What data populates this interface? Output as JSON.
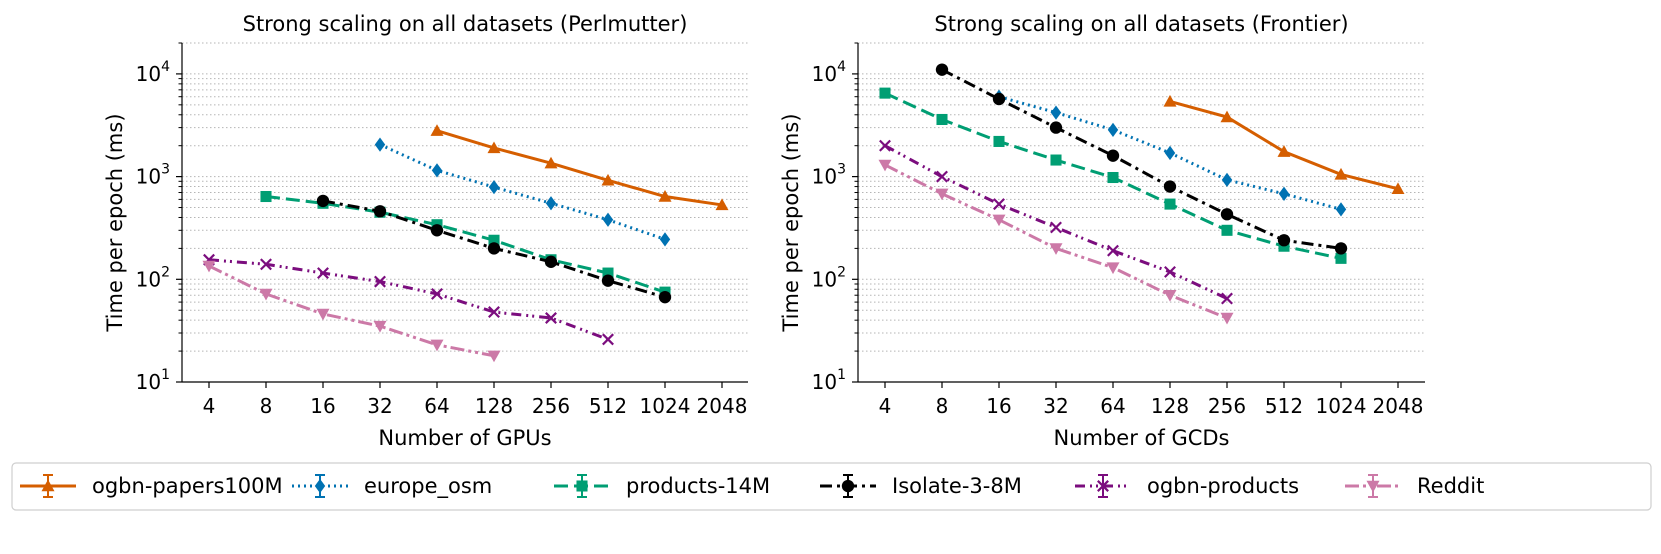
{
  "chart_data": [
    {
      "type": "line",
      "title": "Strong scaling on all datasets (Perlmutter)",
      "xlabel": "Number of GPUs",
      "ylabel": "Time per epoch (ms)",
      "yscale": "log",
      "ylim": [
        10,
        20000
      ],
      "x_ticks": [
        "4",
        "8",
        "16",
        "32",
        "64",
        "128",
        "256",
        "512",
        "1024",
        "2048"
      ],
      "y_ticks": [
        {
          "base": "10",
          "exp": "1"
        },
        {
          "base": "10",
          "exp": "2"
        },
        {
          "base": "10",
          "exp": "3"
        },
        {
          "base": "10",
          "exp": "4"
        }
      ],
      "grid": "horizontal minor, dotted",
      "series": [
        {
          "name": "ogbn-papers100M",
          "x": [
            64,
            128,
            256,
            512,
            1024,
            2048
          ],
          "values": [
            2800,
            1900,
            1350,
            920,
            640,
            530
          ]
        },
        {
          "name": "europe_osm",
          "x": [
            32,
            64,
            128,
            256,
            512,
            1024
          ],
          "values": [
            2050,
            1150,
            790,
            550,
            380,
            245
          ]
        },
        {
          "name": "products-14M",
          "x": [
            8,
            16,
            32,
            64,
            128,
            256,
            512,
            1024
          ],
          "values": [
            640,
            550,
            450,
            340,
            240,
            155,
            115,
            75
          ]
        },
        {
          "name": "Isolate-3-8M",
          "x": [
            16,
            32,
            64,
            128,
            256,
            512,
            1024
          ],
          "values": [
            580,
            460,
            300,
            200,
            148,
            97,
            67
          ]
        },
        {
          "name": "ogbn-products",
          "x": [
            4,
            8,
            16,
            32,
            64,
            128,
            256,
            512
          ],
          "values": [
            155,
            140,
            115,
            95,
            72,
            48,
            42,
            26
          ]
        },
        {
          "name": "Reddit",
          "x": [
            4,
            8,
            16,
            32,
            64,
            128
          ],
          "values": [
            135,
            72,
            46,
            35,
            23,
            18
          ]
        }
      ]
    },
    {
      "type": "line",
      "title": "Strong scaling on all datasets (Frontier)",
      "xlabel": "Number of GCDs",
      "ylabel": "Time per epoch (ms)",
      "yscale": "log",
      "ylim": [
        10,
        20000
      ],
      "x_ticks": [
        "4",
        "8",
        "16",
        "32",
        "64",
        "128",
        "256",
        "512",
        "1024",
        "2048"
      ],
      "y_ticks": [
        {
          "base": "10",
          "exp": "1"
        },
        {
          "base": "10",
          "exp": "2"
        },
        {
          "base": "10",
          "exp": "3"
        },
        {
          "base": "10",
          "exp": "4"
        }
      ],
      "grid": "horizontal minor, dotted",
      "series": [
        {
          "name": "ogbn-papers100M",
          "x": [
            128,
            256,
            512,
            1024,
            2048
          ],
          "values": [
            5400,
            3800,
            1750,
            1050,
            760
          ]
        },
        {
          "name": "europe_osm",
          "x": [
            16,
            32,
            64,
            128,
            256,
            512,
            1024
          ],
          "values": [
            6000,
            4200,
            2850,
            1700,
            930,
            680,
            480
          ]
        },
        {
          "name": "products-14M",
          "x": [
            4,
            8,
            16,
            32,
            64,
            128,
            256,
            512,
            1024
          ],
          "values": [
            6500,
            3600,
            2200,
            1450,
            980,
            540,
            300,
            210,
            160
          ]
        },
        {
          "name": "Isolate-3-8M",
          "x": [
            8,
            16,
            32,
            64,
            128,
            256,
            512,
            1024
          ],
          "values": [
            11000,
            5700,
            3000,
            1600,
            800,
            430,
            240,
            200
          ]
        },
        {
          "name": "ogbn-products",
          "x": [
            4,
            8,
            16,
            32,
            64,
            128,
            256
          ],
          "values": [
            2000,
            1000,
            540,
            320,
            190,
            118,
            65
          ]
        },
        {
          "name": "Reddit",
          "x": [
            4,
            8,
            16,
            32,
            64,
            128,
            256
          ],
          "values": [
            1300,
            680,
            380,
            200,
            130,
            70,
            42
          ]
        }
      ]
    }
  ],
  "legend": {
    "placement": "bottom",
    "items": [
      {
        "name": "ogbn-papers100M",
        "color": "#d55e00",
        "dash": "solid",
        "marker": "triangle-up"
      },
      {
        "name": "europe_osm",
        "color": "#0072b2",
        "dash": "dotted",
        "marker": "diamond"
      },
      {
        "name": "products-14M",
        "color": "#009e73",
        "dash": "dashed",
        "marker": "square"
      },
      {
        "name": "Isolate-3-8M",
        "color": "#000000",
        "dash": "dashdot",
        "marker": "circle"
      },
      {
        "name": "ogbn-products",
        "color": "#7b0d7e",
        "dash": "dashdotdot",
        "marker": "x"
      },
      {
        "name": "Reddit",
        "color": "#cc79a7",
        "dash": "dashdot-long",
        "marker": "triangle-down"
      }
    ]
  }
}
